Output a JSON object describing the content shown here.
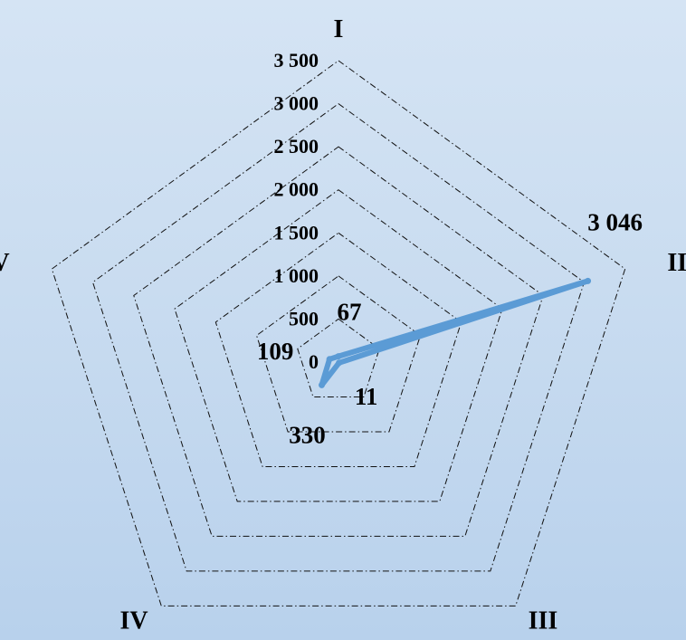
{
  "chart_data": {
    "type": "radar",
    "title": "",
    "categories": [
      "I",
      "II",
      "III",
      "IV",
      "V"
    ],
    "series": [
      {
        "values": [
          67,
          3046,
          11,
          330,
          109
        ]
      }
    ],
    "ylim": [
      0,
      3500
    ],
    "ticks": [
      0,
      500,
      1000,
      1500,
      2000,
      2500,
      3000,
      3500
    ],
    "tick_labels": [
      "0",
      "500",
      "1 000",
      "1 500",
      "2 000",
      "2 500",
      "3 000",
      "3 500"
    ],
    "data_labels": [
      "67",
      "3 046",
      "11",
      "330",
      "109"
    ],
    "grid": true,
    "legend": "none",
    "colors": {
      "series": "#5b9bd5",
      "grid": "#111111"
    }
  }
}
